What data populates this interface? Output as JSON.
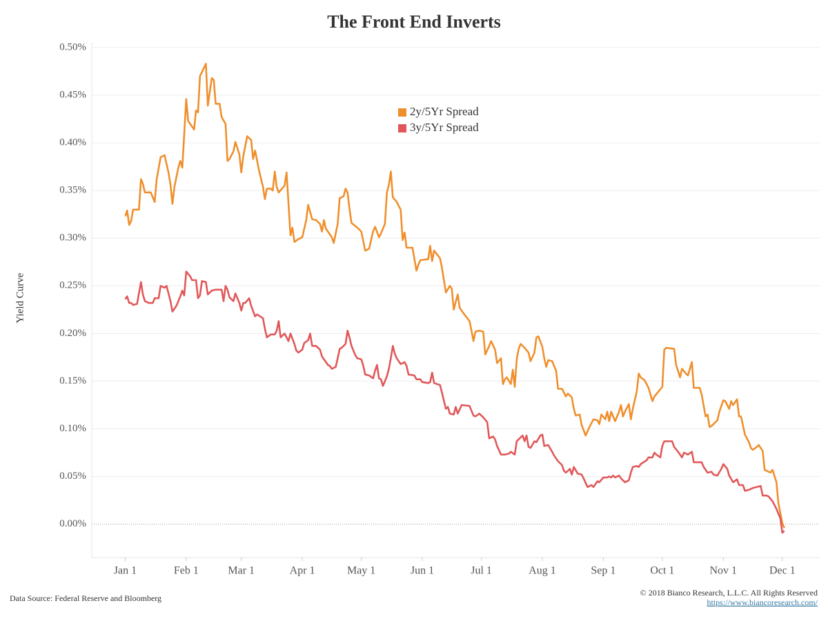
{
  "chart_data": {
    "type": "line",
    "title": "The Front End Inverts",
    "y_label": "Yield Curve",
    "source": "Data Source: Federal Reserve and Bloomberg",
    "copyright": "© 2018 Bianco Research, L.L.C. All Rights Reserved",
    "link": "https://www.biancoresearch.com/",
    "legend": "upper center",
    "grid": true,
    "xlim": [
      -17,
      353
    ],
    "ylim": [
      -0.035,
      0.505
    ],
    "xticks": [
      {
        "value": 0,
        "label": "Jan 1"
      },
      {
        "value": 31,
        "label": "Feb 1"
      },
      {
        "value": 59,
        "label": "Mar 1"
      },
      {
        "value": 90,
        "label": "Apr 1"
      },
      {
        "value": 120,
        "label": "May 1"
      },
      {
        "value": 151,
        "label": "Jun 1"
      },
      {
        "value": 181,
        "label": "Jul 1"
      },
      {
        "value": 212,
        "label": "Aug 1"
      },
      {
        "value": 243,
        "label": "Sep 1"
      },
      {
        "value": 273,
        "label": "Oct 1"
      },
      {
        "value": 304,
        "label": "Nov 1"
      },
      {
        "value": 334,
        "label": "Dec 1"
      }
    ],
    "yticks": [
      {
        "value": 0,
        "label": "0.00%"
      },
      {
        "value": 0.05,
        "label": "0.05%"
      },
      {
        "value": 0.1,
        "label": "0.10%"
      },
      {
        "value": 0.15,
        "label": "0.15%"
      },
      {
        "value": 0.2,
        "label": "0.20%"
      },
      {
        "value": 0.25,
        "label": "0.25%"
      },
      {
        "value": 0.3,
        "label": "0.30%"
      },
      {
        "value": 0.35,
        "label": "0.35%"
      },
      {
        "value": 0.4,
        "label": "0.40%"
      },
      {
        "value": 0.45,
        "label": "0.45%"
      },
      {
        "value": 0.5,
        "label": "0.50%"
      }
    ],
    "series": [
      {
        "name": "2y/5Yr Spread",
        "color": "#ef8f2c",
        "x": [
          0,
          1,
          2,
          3,
          4,
          7,
          8,
          9,
          10,
          13,
          15,
          16,
          18,
          20,
          22,
          23,
          24,
          25,
          27,
          28,
          29,
          31,
          32,
          35,
          36,
          37,
          38,
          41,
          42,
          44,
          45,
          46,
          48,
          49,
          51,
          52,
          53,
          55,
          56,
          58,
          59,
          60,
          62,
          64,
          65,
          66,
          68,
          70,
          71,
          72,
          74,
          75,
          76,
          77,
          78,
          81,
          82,
          84,
          85,
          86,
          88,
          90,
          92,
          93,
          95,
          97,
          99,
          100,
          101,
          102,
          105,
          106,
          108,
          109,
          111,
          112,
          113,
          114,
          115,
          118,
          120,
          122,
          124,
          126,
          127,
          129,
          130,
          132,
          133,
          134,
          135,
          136,
          138,
          140,
          141,
          142,
          143,
          146,
          148,
          149,
          150,
          154,
          155,
          156,
          157,
          160,
          161,
          163,
          165,
          166,
          167,
          169,
          170,
          172,
          175,
          176,
          177,
          178,
          180,
          182,
          183,
          185,
          186,
          188,
          189,
          191,
          192,
          193,
          194,
          196,
          197,
          198,
          199,
          200,
          201,
          203,
          205,
          206,
          208,
          209,
          210,
          212,
          213,
          214,
          215,
          217,
          219,
          220,
          222,
          224,
          225,
          227,
          228,
          229,
          231,
          232,
          234,
          236,
          238,
          240,
          241,
          242,
          244,
          245,
          246,
          247,
          249,
          251,
          252,
          253,
          254,
          256,
          257,
          258,
          260,
          261,
          262,
          264,
          266,
          268,
          269,
          271,
          273,
          274,
          275,
          279,
          280,
          282,
          283,
          285,
          286,
          288,
          289,
          292,
          293,
          295,
          296,
          297,
          298,
          301,
          302,
          304,
          305,
          306,
          307,
          308,
          309,
          311,
          312,
          313,
          315,
          317,
          318,
          319,
          321,
          322,
          324,
          325,
          326,
          328,
          329,
          331,
          332,
          334,
          335
        ],
        "values": [
          0.323,
          0.329,
          0.314,
          0.318,
          0.33,
          0.33,
          0.362,
          0.357,
          0.348,
          0.348,
          0.338,
          0.362,
          0.385,
          0.387,
          0.369,
          0.356,
          0.336,
          0.354,
          0.374,
          0.381,
          0.374,
          0.446,
          0.423,
          0.414,
          0.434,
          0.432,
          0.47,
          0.483,
          0.439,
          0.468,
          0.466,
          0.441,
          0.441,
          0.427,
          0.42,
          0.381,
          0.383,
          0.391,
          0.401,
          0.388,
          0.369,
          0.386,
          0.407,
          0.403,
          0.383,
          0.392,
          0.371,
          0.354,
          0.341,
          0.352,
          0.352,
          0.35,
          0.37,
          0.354,
          0.348,
          0.355,
          0.369,
          0.303,
          0.311,
          0.296,
          0.299,
          0.301,
          0.319,
          0.335,
          0.32,
          0.319,
          0.315,
          0.307,
          0.319,
          0.31,
          0.301,
          0.295,
          0.315,
          0.342,
          0.344,
          0.352,
          0.348,
          0.331,
          0.316,
          0.311,
          0.307,
          0.287,
          0.289,
          0.307,
          0.312,
          0.301,
          0.305,
          0.315,
          0.348,
          0.356,
          0.37,
          0.343,
          0.338,
          0.33,
          0.298,
          0.306,
          0.29,
          0.29,
          0.266,
          0.272,
          0.277,
          0.278,
          0.292,
          0.276,
          0.287,
          0.279,
          0.269,
          0.243,
          0.25,
          0.247,
          0.225,
          0.241,
          0.227,
          0.221,
          0.213,
          0.203,
          0.192,
          0.202,
          0.203,
          0.202,
          0.178,
          0.187,
          0.192,
          0.183,
          0.169,
          0.174,
          0.147,
          0.152,
          0.154,
          0.147,
          0.162,
          0.144,
          0.173,
          0.184,
          0.189,
          0.185,
          0.18,
          0.171,
          0.18,
          0.196,
          0.197,
          0.186,
          0.174,
          0.165,
          0.172,
          0.171,
          0.161,
          0.142,
          0.142,
          0.134,
          0.137,
          0.133,
          0.121,
          0.114,
          0.115,
          0.104,
          0.093,
          0.102,
          0.11,
          0.109,
          0.105,
          0.115,
          0.11,
          0.118,
          0.108,
          0.118,
          0.108,
          0.118,
          0.125,
          0.113,
          0.118,
          0.126,
          0.11,
          0.121,
          0.139,
          0.158,
          0.154,
          0.151,
          0.143,
          0.129,
          0.134,
          0.139,
          0.144,
          0.183,
          0.185,
          0.184,
          0.167,
          0.154,
          0.163,
          0.158,
          0.156,
          0.17,
          0.143,
          0.143,
          0.136,
          0.113,
          0.115,
          0.102,
          0.103,
          0.109,
          0.118,
          0.13,
          0.129,
          0.125,
          0.121,
          0.129,
          0.125,
          0.131,
          0.113,
          0.113,
          0.094,
          0.086,
          0.08,
          0.078,
          0.081,
          0.083,
          0.077,
          0.057,
          0.056,
          0.054,
          0.057,
          0.044,
          0.022,
          0.001,
          -0.004
        ]
      },
      {
        "name": "3y/5Yr Spread",
        "color": "#e15759",
        "x": [
          0,
          1,
          2,
          3,
          4,
          6,
          8,
          9,
          10,
          12,
          14,
          15,
          17,
          18,
          20,
          21,
          23,
          24,
          26,
          27,
          28,
          29,
          30,
          31,
          33,
          34,
          36,
          37,
          38,
          39,
          41,
          42,
          44,
          46,
          49,
          50,
          51,
          52,
          53,
          55,
          56,
          58,
          59,
          60,
          61,
          63,
          64,
          66,
          67,
          70,
          71,
          72,
          74,
          76,
          77,
          78,
          79,
          81,
          83,
          84,
          86,
          87,
          88,
          90,
          91,
          93,
          94,
          95,
          97,
          99,
          100,
          101,
          103,
          104,
          105,
          107,
          108,
          109,
          110,
          112,
          113,
          114,
          115,
          117,
          118,
          120,
          121,
          122,
          124,
          126,
          127,
          128,
          129,
          130,
          131,
          132,
          133,
          134,
          135,
          136,
          137,
          138,
          140,
          142,
          143,
          144,
          147,
          148,
          150,
          151,
          154,
          155,
          156,
          157,
          160,
          161,
          163,
          164,
          165,
          167,
          168,
          169,
          171,
          175,
          176,
          177,
          178,
          180,
          182,
          184,
          185,
          187,
          188,
          189,
          191,
          193,
          195,
          196,
          198,
          199,
          200,
          202,
          203,
          204,
          205,
          206,
          208,
          209,
          211,
          212,
          213,
          215,
          217,
          218,
          219,
          220,
          222,
          223,
          224,
          226,
          227,
          228,
          230,
          232,
          233,
          235,
          237,
          238,
          240,
          241,
          243,
          245,
          246,
          247,
          248,
          249,
          251,
          252,
          254,
          256,
          257,
          258,
          260,
          261,
          262,
          265,
          266,
          268,
          269,
          270,
          272,
          273,
          274,
          276,
          278,
          279,
          281,
          283,
          284,
          286,
          288,
          289,
          293,
          294,
          296,
          298,
          299,
          301,
          303,
          304,
          306,
          307,
          309,
          311,
          312,
          314,
          315,
          317,
          319,
          321,
          323,
          324,
          326,
          327,
          329,
          331,
          333,
          334,
          335
        ],
        "values": [
          0.236,
          0.239,
          0.232,
          0.232,
          0.23,
          0.231,
          0.254,
          0.241,
          0.234,
          0.232,
          0.232,
          0.237,
          0.237,
          0.25,
          0.248,
          0.25,
          0.234,
          0.223,
          0.229,
          0.234,
          0.239,
          0.245,
          0.24,
          0.265,
          0.26,
          0.256,
          0.256,
          0.237,
          0.24,
          0.255,
          0.254,
          0.241,
          0.245,
          0.246,
          0.246,
          0.234,
          0.25,
          0.246,
          0.238,
          0.234,
          0.242,
          0.232,
          0.224,
          0.232,
          0.232,
          0.237,
          0.229,
          0.218,
          0.22,
          0.216,
          0.205,
          0.196,
          0.199,
          0.199,
          0.203,
          0.213,
          0.196,
          0.2,
          0.192,
          0.2,
          0.189,
          0.182,
          0.18,
          0.183,
          0.19,
          0.193,
          0.2,
          0.187,
          0.187,
          0.183,
          0.176,
          0.173,
          0.167,
          0.166,
          0.163,
          0.165,
          0.174,
          0.184,
          0.185,
          0.189,
          0.203,
          0.196,
          0.187,
          0.177,
          0.174,
          0.173,
          0.166,
          0.157,
          0.156,
          0.153,
          0.161,
          0.167,
          0.153,
          0.152,
          0.145,
          0.15,
          0.155,
          0.163,
          0.174,
          0.187,
          0.179,
          0.174,
          0.168,
          0.17,
          0.166,
          0.157,
          0.156,
          0.152,
          0.152,
          0.149,
          0.148,
          0.149,
          0.159,
          0.148,
          0.146,
          0.138,
          0.121,
          0.123,
          0.116,
          0.115,
          0.123,
          0.116,
          0.125,
          0.124,
          0.119,
          0.114,
          0.113,
          0.116,
          0.112,
          0.107,
          0.09,
          0.092,
          0.089,
          0.082,
          0.073,
          0.073,
          0.074,
          0.076,
          0.073,
          0.087,
          0.089,
          0.093,
          0.087,
          0.093,
          0.081,
          0.08,
          0.087,
          0.086,
          0.093,
          0.094,
          0.082,
          0.083,
          0.076,
          0.072,
          0.069,
          0.066,
          0.062,
          0.056,
          0.054,
          0.058,
          0.052,
          0.06,
          0.053,
          0.052,
          0.048,
          0.039,
          0.041,
          0.039,
          0.045,
          0.044,
          0.049,
          0.049,
          0.05,
          0.049,
          0.051,
          0.049,
          0.051,
          0.048,
          0.044,
          0.046,
          0.054,
          0.06,
          0.061,
          0.06,
          0.063,
          0.067,
          0.07,
          0.07,
          0.075,
          0.073,
          0.07,
          0.082,
          0.087,
          0.087,
          0.087,
          0.081,
          0.076,
          0.07,
          0.075,
          0.073,
          0.076,
          0.065,
          0.065,
          0.06,
          0.054,
          0.055,
          0.052,
          0.051,
          0.058,
          0.063,
          0.058,
          0.051,
          0.044,
          0.047,
          0.041,
          0.041,
          0.035,
          0.036,
          0.038,
          0.039,
          0.04,
          0.03,
          0.03,
          0.029,
          0.024,
          0.016,
          0.006,
          -0.009,
          -0.007
        ]
      }
    ]
  }
}
